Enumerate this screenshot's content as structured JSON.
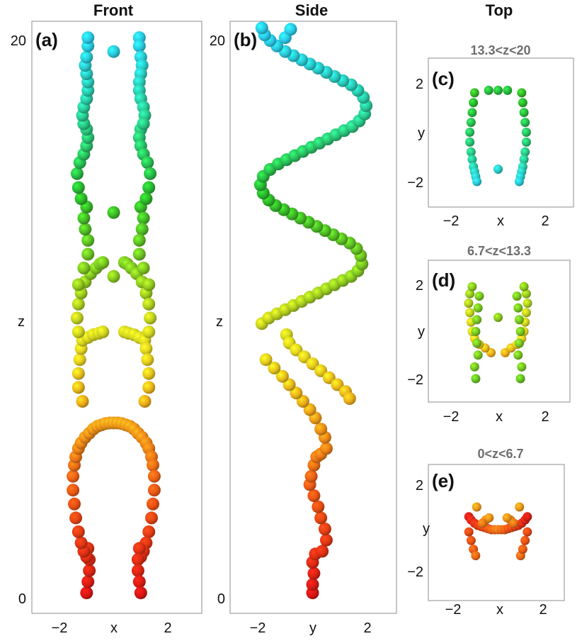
{
  "columns": {
    "front": "Front",
    "side": "Side",
    "top": "Top"
  },
  "chart_data": [
    {
      "type": "scatter",
      "panel": "(a)",
      "view": "Front",
      "xlabel": "x",
      "ylabel": "z",
      "xlim": [
        -3.2,
        3.2
      ],
      "ylim": [
        -0.8,
        21.0
      ],
      "xticks": [
        "−2",
        "2"
      ],
      "yticks": [
        "0",
        "20"
      ],
      "series": [
        {
          "x": [
            -1.0,
            -0.95,
            -0.9,
            -0.9,
            -0.95,
            -1.0,
            -1.1,
            -1.2,
            -1.3,
            -1.4,
            -1.45,
            -1.5,
            -1.5,
            -1.45,
            -1.4,
            -1.3,
            -1.2,
            -1.05,
            -0.9,
            -0.75,
            -0.6,
            -0.45,
            -0.3,
            -0.15,
            0.0,
            0.15,
            0.3,
            0.45,
            0.6,
            0.75,
            0.9,
            1.05,
            1.2,
            1.3,
            1.4,
            1.45,
            1.5,
            1.5,
            1.45,
            1.4,
            1.3,
            1.2,
            1.1,
            1.0,
            0.95,
            0.9,
            0.9,
            0.95,
            1.0
          ],
          "y": [
            0.1,
            0.5,
            0.9,
            1.3,
            1.7,
            1.4,
            1.6,
            1.9,
            2.3,
            2.8,
            3.3,
            3.8,
            4.3,
            4.7,
            5.0,
            5.3,
            5.5,
            5.7,
            5.85,
            6.0,
            6.1,
            6.15,
            6.2,
            6.22,
            6.22,
            6.22,
            6.2,
            6.15,
            6.1,
            6.0,
            5.85,
            5.7,
            5.5,
            5.3,
            5.0,
            4.7,
            4.3,
            3.8,
            3.3,
            2.8,
            2.3,
            1.9,
            1.6,
            1.4,
            1.7,
            1.3,
            0.9,
            0.5,
            0.1
          ],
          "colorz": true
        },
        {
          "x": [
            -1.15,
            -1.3,
            -1.3,
            -1.25,
            -1.2,
            -1.15,
            -0.95,
            -0.75,
            -0.55,
            -0.4,
            0.4,
            0.55,
            0.75,
            0.95,
            1.15,
            1.2,
            1.25,
            1.3,
            1.3,
            1.15
          ],
          "y": [
            7.0,
            7.5,
            8.0,
            8.5,
            8.9,
            9.2,
            9.3,
            9.4,
            9.45,
            9.5,
            9.5,
            9.45,
            9.4,
            9.3,
            9.2,
            8.9,
            8.5,
            8.0,
            7.5,
            7.0
          ],
          "colorz": true
        },
        {
          "x": [
            -1.3,
            -1.35,
            -1.3,
            -1.2,
            -1.05,
            -0.85,
            -0.65,
            -0.5,
            -0.4,
            0.4,
            0.5,
            0.65,
            0.85,
            1.05,
            1.2,
            1.3,
            1.35,
            1.3
          ],
          "y": [
            9.5,
            10.0,
            10.5,
            10.9,
            11.3,
            11.6,
            11.8,
            11.95,
            12.0,
            12.0,
            11.95,
            11.8,
            11.6,
            11.3,
            10.9,
            10.5,
            10.0,
            9.5
          ],
          "colorz": true
        },
        {
          "x": [
            -1.3,
            -1.1,
            -0.95,
            -0.95,
            -1.05,
            -1.1,
            -1.0,
            1.0,
            1.1,
            1.05,
            0.95,
            0.95,
            1.1,
            1.3
          ],
          "y": [
            11.2,
            11.8,
            12.3,
            12.8,
            13.2,
            13.6,
            14.0,
            14.0,
            13.6,
            13.2,
            12.8,
            12.3,
            11.8,
            11.2
          ],
          "colorz": true
        },
        {
          "x": [
            -1.2,
            -1.3,
            -1.35,
            -1.25,
            -1.1,
            -1.0,
            -0.95,
            -1.0,
            -1.1,
            1.1,
            1.0,
            0.95,
            1.0,
            1.1,
            1.25,
            1.35,
            1.3,
            1.2
          ],
          "y": [
            14.3,
            14.7,
            15.2,
            15.6,
            15.9,
            16.2,
            16.5,
            16.8,
            17.0,
            17.0,
            16.8,
            16.5,
            16.2,
            15.9,
            15.6,
            15.2,
            14.7,
            14.3
          ],
          "colorz": true
        },
        {
          "x": [
            -1.1,
            -1.15,
            -1.1,
            -1.0,
            -0.95,
            -0.95,
            -1.0,
            -1.05,
            -1.0,
            -0.95,
            -0.95,
            0.95,
            0.95,
            1.0,
            1.05,
            1.0,
            0.95,
            0.95,
            1.0,
            1.1,
            1.15,
            1.1
          ],
          "y": [
            17.0,
            17.3,
            17.6,
            17.9,
            18.2,
            18.5,
            18.8,
            19.1,
            19.4,
            19.8,
            20.1,
            20.1,
            19.8,
            19.4,
            19.1,
            18.8,
            18.5,
            18.2,
            17.9,
            17.6,
            17.3,
            17.0
          ],
          "colorz": true
        },
        {
          "x": [
            0.0,
            0.0,
            0.0
          ],
          "y": [
            11.5,
            13.8,
            19.6
          ],
          "colorz": true
        }
      ]
    },
    {
      "type": "scatter",
      "panel": "(b)",
      "view": "Side",
      "xlabel": "y",
      "ylabel": "z",
      "xlim": [
        -3.2,
        3.2
      ],
      "ylim": [
        -0.8,
        21.0
      ],
      "xticks": [
        "−2",
        "2"
      ],
      "yticks": [
        "0",
        "20"
      ],
      "series": [
        {
          "x": [
            0.0,
            0.0,
            0.05,
            0.0,
            0.1,
            0.35,
            0.5,
            0.45,
            0.3,
            0.2,
            0.05,
            -0.1,
            -0.05,
            0.05,
            0.15
          ],
          "y": [
            0.1,
            0.4,
            0.8,
            1.2,
            1.5,
            1.6,
            2.0,
            2.4,
            2.8,
            3.2,
            3.6,
            4.0,
            4.3,
            4.7,
            5.0
          ],
          "colorz": true
        },
        {
          "x": [
            0.3,
            0.5,
            0.45,
            0.3,
            0.1,
            -0.1,
            -0.35,
            -0.6,
            -0.85,
            -1.1,
            -1.4,
            -1.7
          ],
          "y": [
            5.1,
            5.3,
            5.7,
            6.0,
            6.4,
            6.7,
            7.0,
            7.3,
            7.6,
            7.9,
            8.2,
            8.5
          ],
          "colorz": true
        },
        {
          "x": [
            -0.95,
            -0.85,
            -0.6,
            -0.3,
            0.0,
            0.3,
            0.6,
            0.9,
            1.2,
            1.35
          ],
          "y": [
            9.4,
            9.1,
            8.85,
            8.6,
            8.35,
            8.1,
            7.85,
            7.6,
            7.35,
            7.1
          ],
          "colorz": true
        },
        {
          "x": [
            -1.85,
            -1.6,
            -1.3,
            -1.0,
            -0.7,
            -0.4,
            -0.1,
            0.2,
            0.5,
            0.8,
            1.1,
            1.4,
            1.65,
            1.8,
            1.75,
            1.6,
            1.35,
            1.05,
            0.75,
            0.45,
            0.15,
            -0.15,
            -0.45,
            -0.75,
            -1.05,
            -1.35,
            -1.6,
            -1.8,
            -1.9,
            -1.8,
            -1.55,
            -1.25,
            -0.95,
            -0.65,
            -0.35,
            -0.05,
            0.25,
            0.55,
            0.85,
            1.15,
            1.45,
            1.7,
            1.9,
            1.95,
            1.85,
            1.65,
            1.4,
            1.1,
            0.8,
            0.5,
            0.2,
            -0.1,
            -0.4,
            -0.7,
            -1.0,
            -1.3,
            -1.55,
            -1.75,
            -1.85
          ],
          "y": [
            9.8,
            10.0,
            10.15,
            10.3,
            10.45,
            10.6,
            10.75,
            10.9,
            11.05,
            11.2,
            11.35,
            11.5,
            11.7,
            11.95,
            12.25,
            12.5,
            12.7,
            12.85,
            13.0,
            13.15,
            13.3,
            13.45,
            13.6,
            13.75,
            13.9,
            14.05,
            14.25,
            14.5,
            14.8,
            15.1,
            15.35,
            15.55,
            15.7,
            15.85,
            16.0,
            16.15,
            16.3,
            16.45,
            16.6,
            16.75,
            16.9,
            17.1,
            17.35,
            17.65,
            17.95,
            18.2,
            18.4,
            18.55,
            18.7,
            18.85,
            19.0,
            19.15,
            19.3,
            19.45,
            19.6,
            19.8,
            20.0,
            20.2,
            20.45
          ],
          "colorz": true
        },
        {
          "x": [
            -1.0,
            -0.8
          ],
          "y": [
            20.1,
            20.4
          ],
          "colorz": true
        }
      ]
    },
    {
      "type": "scatter",
      "panel": "(c)",
      "view": "Top",
      "subtitle": "13.3<z<20",
      "xlabel": "x",
      "ylabel": "y",
      "xlim": [
        -3.2,
        3.2
      ],
      "ylim": [
        -3.0,
        3.0
      ],
      "xticks": [
        "−2",
        "2"
      ],
      "yticks": [
        "2",
        "−2"
      ],
      "zrange": [
        13.3,
        20
      ],
      "series": [
        {
          "x": [
            -1.0,
            -1.05,
            -1.1,
            -1.15,
            -1.2,
            -1.2,
            -1.15,
            -1.1,
            -1.05,
            -1.0,
            -0.95,
            -0.9,
            1.0,
            1.05,
            1.1,
            1.15,
            1.2,
            1.2,
            1.15,
            1.1,
            1.05,
            1.0,
            0.95,
            0.9
          ],
          "y": [
            1.6,
            1.2,
            0.8,
            0.4,
            0.0,
            -0.4,
            -0.8,
            -1.1,
            -1.4,
            -1.6,
            -1.8,
            -2.0,
            1.6,
            1.2,
            0.8,
            0.4,
            0.0,
            -0.4,
            -0.8,
            -1.1,
            -1.4,
            -1.6,
            -1.8,
            -2.0
          ],
          "z": [
            14,
            14.5,
            15,
            15.5,
            16,
            16.5,
            17,
            17.5,
            18,
            18.5,
            19,
            19.5,
            14,
            14.5,
            15,
            15.5,
            16,
            16.5,
            17,
            17.5,
            18,
            18.5,
            19,
            19.5
          ]
        },
        {
          "x": [
            -0.4,
            0.0,
            0.4,
            0.0
          ],
          "y": [
            1.7,
            1.7,
            1.7,
            -1.5
          ],
          "z": [
            15,
            15,
            15,
            19
          ]
        }
      ]
    },
    {
      "type": "scatter",
      "panel": "(d)",
      "view": "Top",
      "subtitle": "6.7<z<13.3",
      "xlabel": "x",
      "ylabel": "y",
      "xlim": [
        -3.2,
        3.2
      ],
      "ylim": [
        -3.0,
        3.0
      ],
      "xticks": [
        "−2",
        "2"
      ],
      "yticks": [
        "2",
        "−2"
      ],
      "zrange": [
        6.7,
        13.3
      ],
      "series": [
        {
          "x": [
            -0.3,
            -0.55,
            -0.8,
            -1.0,
            -1.1,
            -1.15,
            -1.2,
            -1.25,
            -1.2,
            -1.1,
            -1.0,
            -0.95,
            0.3,
            0.55,
            0.8,
            1.0,
            1.1,
            1.15,
            1.2,
            1.25,
            1.2,
            1.1,
            1.0,
            0.95
          ],
          "y": [
            -0.9,
            -0.7,
            -0.55,
            -0.3,
            0.0,
            0.4,
            0.8,
            1.2,
            1.6,
            1.9,
            -1.5,
            -2.0,
            -0.9,
            -0.7,
            -0.55,
            -0.3,
            0.0,
            0.4,
            0.8,
            1.2,
            1.6,
            1.9,
            -1.5,
            -2.0
          ],
          "z": [
            7,
            7.5,
            8,
            8.5,
            9,
            9.5,
            10,
            10.5,
            11,
            11.5,
            12,
            12.5,
            7,
            7.5,
            8,
            8.5,
            9,
            9.5,
            10,
            10.5,
            11,
            11.5,
            12,
            12.5
          ]
        },
        {
          "x": [
            -0.8,
            -0.85,
            -0.9,
            -0.95,
            -0.9,
            -0.85,
            0.8,
            0.85,
            0.9,
            0.95,
            0.9,
            0.85,
            0.0
          ],
          "y": [
            1.5,
            1.0,
            0.5,
            0.0,
            -0.5,
            -1.0,
            1.5,
            1.0,
            0.5,
            0.0,
            -0.5,
            -1.0,
            0.6
          ],
          "z": [
            12,
            12,
            12,
            12,
            12,
            12,
            12,
            12,
            12,
            12,
            12,
            12,
            11.5
          ]
        }
      ]
    },
    {
      "type": "scatter",
      "panel": "(e)",
      "view": "Top",
      "subtitle": "0<z<6.7",
      "xlabel": "x",
      "ylabel": "y",
      "xlim": [
        -3.2,
        3.2
      ],
      "ylim": [
        -3.0,
        3.0
      ],
      "xticks": [
        "−2",
        "2"
      ],
      "yticks": [
        "2",
        "−2"
      ],
      "zrange": [
        0,
        6.7
      ],
      "series": [
        {
          "x": [
            -1.3,
            -1.2,
            -1.05,
            -0.9,
            -0.75,
            -0.6,
            -0.45,
            -0.3,
            -0.15,
            0.0,
            0.15,
            0.3,
            0.45,
            0.6,
            0.75,
            0.9,
            1.05,
            1.2,
            1.3
          ],
          "y": [
            0.5,
            0.35,
            0.2,
            0.1,
            0.05,
            0.0,
            -0.05,
            -0.1,
            -0.1,
            -0.1,
            -0.1,
            -0.1,
            -0.05,
            0.0,
            0.05,
            0.1,
            0.2,
            0.35,
            0.5
          ],
          "z": [
            0.5,
            1.0,
            1.5,
            2.0,
            2.5,
            3.0,
            3.5,
            4.0,
            4.5,
            5.0,
            4.5,
            4.0,
            3.5,
            3.0,
            2.5,
            2.0,
            1.5,
            1.0,
            0.5
          ]
        },
        {
          "x": [
            -1.3,
            -1.2,
            -1.1,
            -1.0,
            1.0,
            1.1,
            1.2,
            1.3,
            -0.55,
            -0.4,
            -0.7,
            0.55,
            0.4,
            0.7,
            -0.95,
            0.95
          ],
          "y": [
            -0.2,
            -0.6,
            -1.0,
            -1.3,
            -1.3,
            -1.0,
            -0.6,
            -0.2,
            0.35,
            0.45,
            0.2,
            0.35,
            0.45,
            0.2,
            0.95,
            0.95
          ],
          "z": [
            3,
            3.5,
            4,
            4.5,
            4.5,
            4,
            3.5,
            3,
            5.5,
            6,
            5,
            5.5,
            6,
            5,
            6.2,
            6.2
          ]
        }
      ]
    }
  ]
}
